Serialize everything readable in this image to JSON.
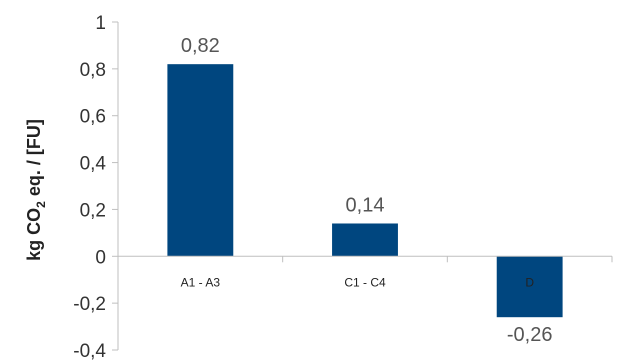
{
  "chart_data": {
    "type": "bar",
    "categories": [
      "A1 - A3",
      "C1 - C4",
      "D"
    ],
    "values": [
      0.82,
      0.14,
      -0.26
    ],
    "data_labels": [
      "0,82",
      "0,14",
      "-0,26"
    ],
    "ylabel_parts": {
      "main": "kg CO",
      "subscript": "2",
      "rest": " eq. / [FU]"
    },
    "ylim": [
      -0.4,
      1
    ],
    "yticks": [
      1,
      0.8,
      0.6,
      0.4,
      0.2,
      0,
      -0.2,
      -0.4
    ],
    "ytick_labels": [
      "1",
      "0,8",
      "0,6",
      "0,4",
      "0,2",
      "0",
      "-0,2",
      "-0,4"
    ],
    "bar_color": "#00467F",
    "axis_color": "#BFBFBF",
    "grid": false,
    "legend": "none"
  }
}
